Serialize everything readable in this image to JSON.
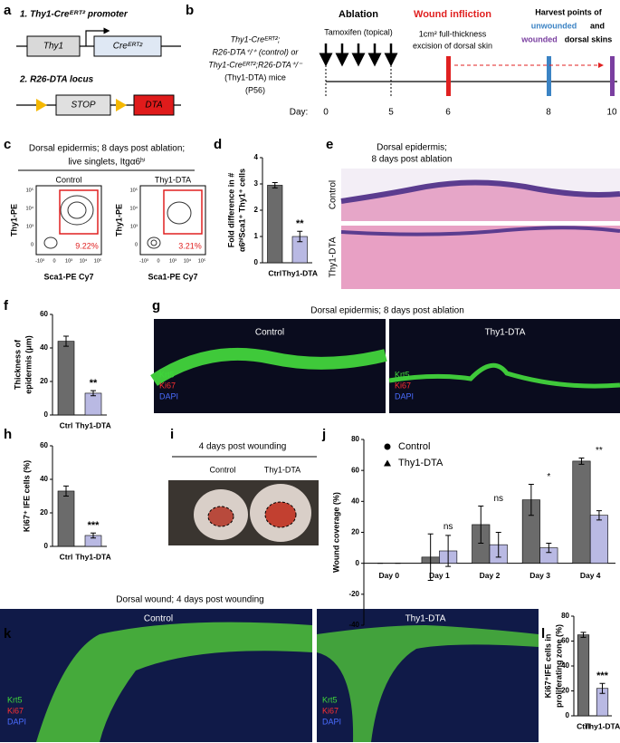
{
  "panels": {
    "a": {
      "letter": "a",
      "title1": "1. Thy1-Creᴱᴿᵀ² promoter",
      "gene1": "Thy1",
      "gene2": "Creᴱᴿᵀ²",
      "title2": "2. R26-DTA locus",
      "stop": "STOP",
      "dta": "DTA"
    },
    "b": {
      "letter": "b",
      "mice": [
        "Thy1-Creᴱᴿᵀ²;",
        "R26-DTA⁺/⁺ (control) or",
        "Thy1-Creᴱᴿᵀ²;R26-DTA⁺/⁻",
        "(Thy1-DTA) mice",
        "(P56)"
      ],
      "ablation": "Ablation",
      "tamoxifen": "Tamoxifen (topical)",
      "wound": "Wound infliction",
      "excision": [
        "1cm² full-thickness",
        "excision of dorsal skin"
      ],
      "harvest": "Harvest points of",
      "unwounded": "unwounded",
      "and": "and",
      "wounded": "wounded",
      "dorsal": "dorsal skins",
      "day_label": "Day:",
      "days": [
        "0",
        "5",
        "6",
        "8",
        "10"
      ]
    },
    "c": {
      "letter": "c",
      "title": [
        "Dorsal epidermis; 8 days post ablation;",
        "live singlets, Itgα6ʰⁱ"
      ],
      "groups": [
        "Control",
        "Thy1-DTA"
      ],
      "ylabel": "Thy1-PE",
      "xlabel": "Sca1-PE Cy7",
      "gates": [
        "9.22%",
        "3.21%"
      ],
      "yticks": [
        "10⁵",
        "10⁴",
        "10³",
        "0"
      ],
      "xticks": [
        "-10³",
        "0",
        "10³",
        "10⁴",
        "10⁵"
      ]
    },
    "d": {
      "letter": "d"
    },
    "e": {
      "letter": "e",
      "title": [
        "Dorsal epidermis;",
        "8 days post ablation"
      ],
      "rows": [
        "Control",
        "Thy1-DTA"
      ]
    },
    "f": {
      "letter": "f"
    },
    "g": {
      "letter": "g",
      "title": "Dorsal epidermis; 8 days post ablation",
      "groups": [
        "Control",
        "Thy1-DTA"
      ],
      "stains": [
        "Krt5",
        "Ki67",
        "DAPI"
      ]
    },
    "h": {
      "letter": "h"
    },
    "i": {
      "letter": "i",
      "title": "4 days post wounding",
      "groups": [
        "Control",
        "Thy1-DTA"
      ]
    },
    "j": {
      "letter": "j"
    },
    "k": {
      "letter": "k",
      "title": "Dorsal wound; 4 days post wounding",
      "groups": [
        "Control",
        "Thy1-DTA"
      ],
      "stains": [
        "Krt5",
        "Ki67",
        "DAPI"
      ]
    },
    "l": {
      "letter": "l"
    }
  },
  "chart_data": [
    {
      "type": "bar",
      "ylabel": [
        "Fold difference in #",
        "α6ʰⁱSca1⁺ Thy1⁺ cells"
      ],
      "categories": [
        "Ctrl",
        "Thy1-DTA"
      ],
      "values": [
        2.95,
        1.0
      ],
      "errors": [
        0.1,
        0.2
      ],
      "colors": [
        "#6b6b6b",
        "#b9b9e3"
      ],
      "ylim": [
        0,
        4
      ],
      "yticks": [
        0,
        1,
        2,
        3,
        4
      ],
      "annotation": "**"
    },
    {
      "type": "bar",
      "ylabel": [
        "Thickness of",
        "epidermis (μm)"
      ],
      "categories": [
        "Ctrl",
        "Thy1-DTA"
      ],
      "values": [
        44,
        13
      ],
      "errors": [
        3,
        1.5
      ],
      "colors": [
        "#6b6b6b",
        "#b9b9e3"
      ],
      "ylim": [
        0,
        60
      ],
      "yticks": [
        0,
        20,
        40,
        60
      ],
      "annotation": "**"
    },
    {
      "type": "bar",
      "ylabel": [
        "Ki67⁺ IFE cells (%)"
      ],
      "categories": [
        "Ctrl",
        "Thy1-DTA"
      ],
      "values": [
        33,
        6.5
      ],
      "errors": [
        3,
        1.5
      ],
      "colors": [
        "#6b6b6b",
        "#b9b9e3"
      ],
      "ylim": [
        0,
        60
      ],
      "yticks": [
        0,
        20,
        40,
        60
      ],
      "annotation": "***"
    },
    {
      "type": "bar",
      "ylabel": [
        "Wound coverage (%)"
      ],
      "categories": [
        "Day 0",
        "Day 1",
        "Day 2",
        "Day 3",
        "Day 4"
      ],
      "series": [
        {
          "name": "Control",
          "color": "#6b6b6b",
          "values": [
            0,
            4,
            25,
            41,
            66
          ],
          "errors": [
            0,
            15,
            12,
            10,
            2
          ]
        },
        {
          "name": "Thy1-DTA",
          "color": "#b9b9e3",
          "values": [
            0,
            8,
            12,
            10,
            31
          ],
          "errors": [
            0,
            10,
            8,
            3,
            3
          ]
        }
      ],
      "annotations": [
        null,
        "ns",
        "ns",
        "*",
        "**"
      ],
      "ylim": [
        -40,
        80
      ],
      "yticks": [
        -40,
        -20,
        0,
        20,
        40,
        60,
        80
      ]
    },
    {
      "type": "bar",
      "ylabel": [
        "Ki67⁺IFE cells in",
        "proliferating zone (%)"
      ],
      "categories": [
        "Ctrl",
        "Thy1-DTA"
      ],
      "values": [
        65,
        22
      ],
      "errors": [
        2,
        4
      ],
      "colors": [
        "#6b6b6b",
        "#b9b9e3"
      ],
      "ylim": [
        0,
        80
      ],
      "yticks": [
        0,
        20,
        40,
        60,
        80
      ],
      "annotation": "***"
    }
  ]
}
